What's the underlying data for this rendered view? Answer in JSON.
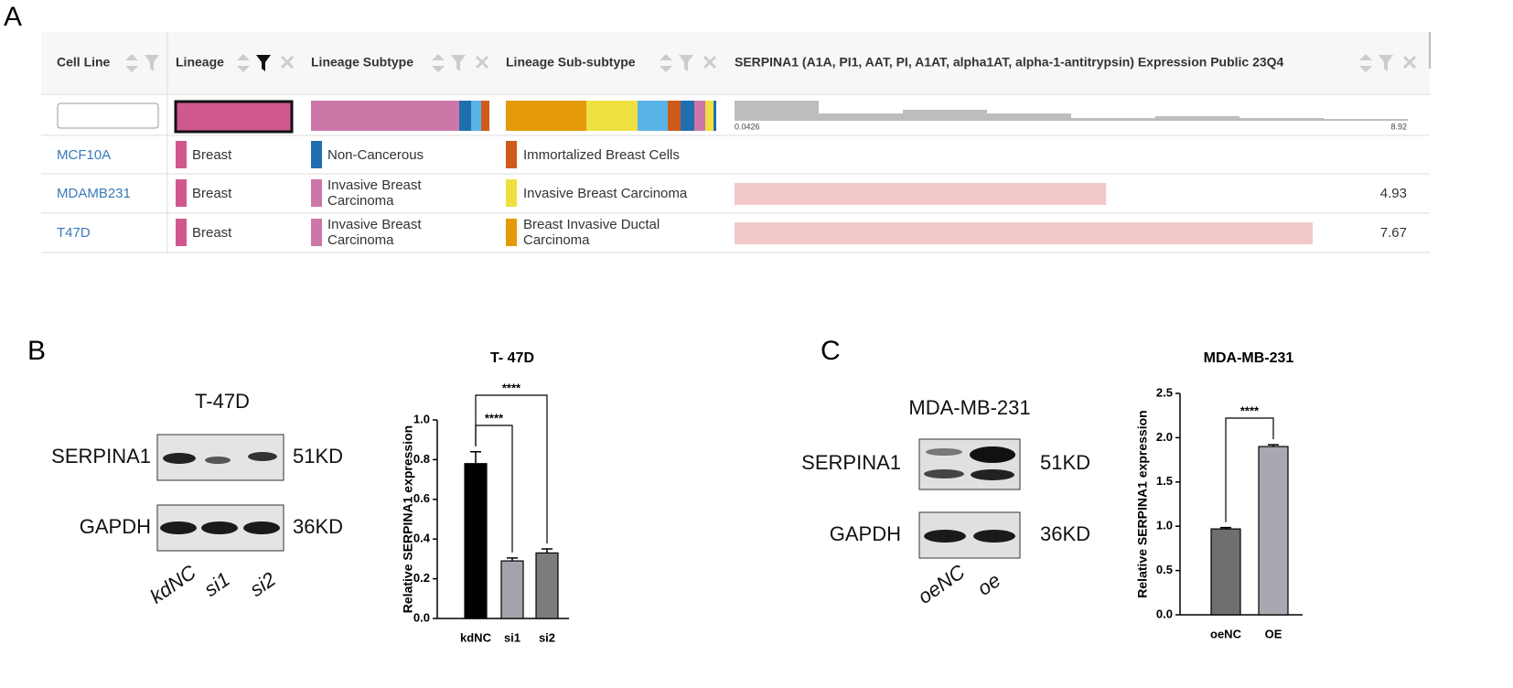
{
  "panel_labels": [
    "A",
    "B",
    "C"
  ],
  "table": {
    "headers": [
      "Cell Line",
      "Lineage",
      "Lineage Subtype",
      "Lineage Sub-subtype",
      "SERPINA1 (A1A, PI1, AAT, PI, A1AT, alpha1AT, alpha-1-antitrypsin) Expression Public 23Q4"
    ],
    "range": [
      0.0426,
      8.92
    ],
    "rows": [
      {
        "cell_line": "MCF10A",
        "lineage": "Breast",
        "subtype": "Non-Cancerous",
        "subsubtype": "Immortalized Breast Cells",
        "expression": null
      },
      {
        "cell_line": "MDAMB231",
        "lineage": "Breast",
        "subtype": "Invasive Breast Carcinoma",
        "subsubtype": "Invasive Breast Carcinoma",
        "expression": 4.93
      },
      {
        "cell_line": "T47D",
        "lineage": "Breast",
        "subtype": "Invasive Breast Carcinoma",
        "subsubtype": "Breast Invasive Ductal Carcinoma",
        "expression": 7.67
      }
    ]
  },
  "blots": [
    {
      "title": "T-47D",
      "proteins": [
        "SERPINA1",
        "GAPDH"
      ],
      "sizes": [
        "51KD",
        "36KD"
      ],
      "lanes": [
        "kdNC",
        "si1",
        "si2"
      ]
    },
    {
      "title": "MDA-MB-231",
      "proteins": [
        "SERPINA1",
        "GAPDH"
      ],
      "sizes": [
        "51KD",
        "36KD"
      ],
      "lanes": [
        "oeNC",
        "oe"
      ]
    }
  ],
  "chart_data": [
    {
      "type": "bar",
      "title": "T- 47D",
      "y_label": "Relative SERPINA1 expression",
      "categories": [
        "kdNC",
        "si1",
        "si2"
      ],
      "values": [
        0.78,
        0.29,
        0.33
      ],
      "errors": [
        0.06,
        0.015,
        0.02
      ],
      "colors": [
        "#000000",
        "#a3a3ab",
        "#7c7c7c"
      ],
      "ylim": [
        0,
        1.0
      ],
      "yticks": [
        {
          "value": 0,
          "label": "0.0"
        },
        0.2,
        0.4,
        0.6,
        0.8,
        {
          "value": 1.0,
          "label": "1.0"
        }
      ],
      "significance": [
        {
          "from": "kdNC",
          "to": "si1",
          "label": "****"
        },
        {
          "from": "kdNC",
          "to": "si2",
          "label": "****"
        }
      ]
    },
    {
      "type": "bar",
      "title": "MDA-MB-231",
      "y_label": "Relative SERPINA1 expression",
      "categories": [
        "oeNC",
        "OE"
      ],
      "values": [
        0.97,
        1.9
      ],
      "errors": [
        0.015,
        0.02
      ],
      "colors": [
        "#6f6f6f",
        "#a8a8b0"
      ],
      "ylim": [
        0,
        2.5
      ],
      "yticks": [
        {
          "value": 0,
          "label": "0.0"
        },
        0.5,
        {
          "value": 1.0,
          "label": "1.0"
        },
        1.5,
        {
          "value": 2.0,
          "label": "2.0"
        },
        2.5
      ],
      "significance": [
        {
          "from": "oeNC",
          "to": "OE",
          "label": "****"
        }
      ]
    }
  ]
}
